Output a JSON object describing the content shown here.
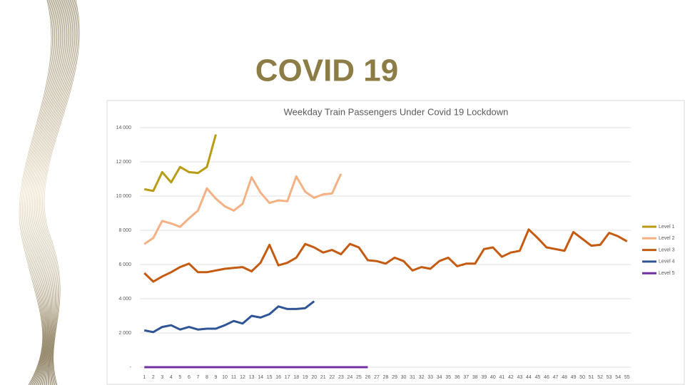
{
  "slide_title": "COVID 19",
  "chart_data": {
    "type": "line",
    "title": "Weekday Train Passengers Under Covid 19 Lockdown",
    "categories": [
      "1",
      "2",
      "3",
      "4",
      "5",
      "6",
      "7",
      "8",
      "9",
      "10",
      "11",
      "12",
      "13",
      "14",
      "15",
      "16",
      "17",
      "18",
      "19",
      "20",
      "21",
      "22",
      "23",
      "24",
      "25",
      "26",
      "27",
      "28",
      "29",
      "30",
      "31",
      "32",
      "33",
      "34",
      "35",
      "36",
      "37",
      "38",
      "39",
      "40",
      "41",
      "42",
      "43",
      "44",
      "45",
      "46",
      "47",
      "48",
      "49",
      "50",
      "51",
      "52",
      "53",
      "54",
      "55"
    ],
    "ylim": [
      0,
      14000
    ],
    "yticks": [
      {
        "value": 0,
        "label": "-"
      },
      {
        "value": 2000,
        "label": "2 000"
      },
      {
        "value": 4000,
        "label": "4 000"
      },
      {
        "value": 6000,
        "label": "6 000"
      },
      {
        "value": 8000,
        "label": "8 000"
      },
      {
        "value": 10000,
        "label": "10 000"
      },
      {
        "value": 12000,
        "label": "12 000"
      },
      {
        "value": 14000,
        "label": "14 000"
      }
    ],
    "grid": true,
    "legend": "right",
    "series": [
      {
        "name": "Level 1",
        "color": "#b89c14",
        "values": [
          10400,
          10300,
          11400,
          10800,
          11700,
          11400,
          11350,
          11700,
          13600,
          null,
          null,
          null,
          null,
          null,
          null,
          null,
          null,
          null,
          null,
          null,
          null,
          null,
          null,
          null,
          null,
          null,
          null,
          null,
          null,
          null,
          null,
          null,
          null,
          null,
          null,
          null,
          null,
          null,
          null,
          null,
          null,
          null,
          null,
          null,
          null,
          null,
          null,
          null,
          null,
          null,
          null,
          null,
          null,
          null,
          null
        ]
      },
      {
        "name": "Level 2",
        "color": "#f4b183",
        "values": [
          7200,
          7550,
          8550,
          8400,
          8200,
          8700,
          9150,
          10450,
          9850,
          9400,
          9150,
          9550,
          11100,
          10200,
          9600,
          9750,
          9700,
          11150,
          10250,
          9900,
          10100,
          10150,
          11300,
          null,
          null,
          null,
          null,
          null,
          null,
          null,
          null,
          null,
          null,
          null,
          null,
          null,
          null,
          null,
          null,
          null,
          null,
          null,
          null,
          null,
          null,
          null,
          null,
          null,
          null,
          null,
          null,
          null,
          null,
          null,
          null
        ]
      },
      {
        "name": "Level 3",
        "color": "#c55a11",
        "values": [
          5500,
          5000,
          5300,
          5550,
          5850,
          6050,
          5550,
          5550,
          5650,
          5750,
          5800,
          5850,
          5600,
          6100,
          7150,
          5950,
          6100,
          6400,
          7200,
          7000,
          6700,
          6850,
          6600,
          7200,
          7000,
          6250,
          6200,
          6050,
          6400,
          6200,
          5650,
          5850,
          5750,
          6200,
          6400,
          5900,
          6050,
          6050,
          6900,
          7000,
          6450,
          6700,
          6800,
          8050,
          7550,
          7000,
          6900,
          6800,
          7900,
          7500,
          7100,
          7150,
          7850,
          7650,
          7350
        ]
      },
      {
        "name": "Level 4",
        "color": "#2f5597",
        "values": [
          2150,
          2050,
          2350,
          2450,
          2200,
          2350,
          2200,
          2250,
          2250,
          2450,
          2700,
          2550,
          3000,
          2900,
          3100,
          3550,
          3400,
          3400,
          3450,
          3850,
          null,
          null,
          null,
          null,
          null,
          null,
          null,
          null,
          null,
          null,
          null,
          null,
          null,
          null,
          null,
          null,
          null,
          null,
          null,
          null,
          null,
          null,
          null,
          null,
          null,
          null,
          null,
          null,
          null,
          null,
          null,
          null,
          null,
          null,
          null
        ]
      },
      {
        "name": "Level 5",
        "color": "#7030a0",
        "values": [
          0,
          0,
          0,
          0,
          0,
          0,
          0,
          0,
          0,
          0,
          0,
          0,
          0,
          0,
          0,
          0,
          0,
          0,
          0,
          0,
          0,
          0,
          0,
          0,
          0,
          0,
          null,
          null,
          null,
          null,
          null,
          null,
          null,
          null,
          null,
          null,
          null,
          null,
          null,
          null,
          null,
          null,
          null,
          null,
          null,
          null,
          null,
          null,
          null,
          null,
          null,
          null,
          null,
          null,
          null
        ]
      }
    ]
  }
}
